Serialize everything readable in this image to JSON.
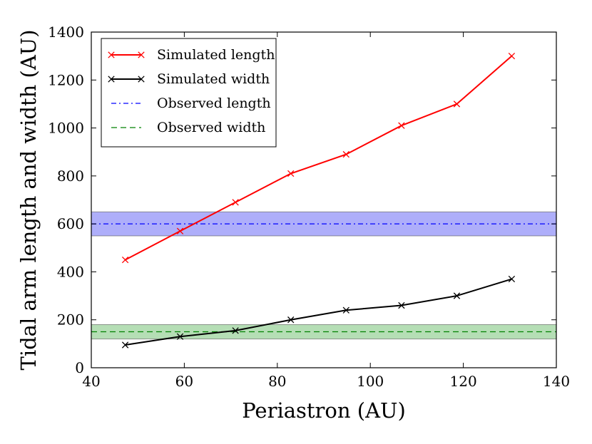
{
  "chart_data": {
    "type": "line",
    "xlabel": "Periastron (AU)",
    "ylabel": "Tidal arm length and width (AU)",
    "xlim": [
      40,
      140
    ],
    "ylim": [
      0,
      1400
    ],
    "xticks": [
      40,
      60,
      80,
      100,
      120,
      140
    ],
    "yticks": [
      0,
      200,
      400,
      600,
      800,
      1000,
      1200,
      1400
    ],
    "series": [
      {
        "name": "Simulated length",
        "color": "#ff0000",
        "marker": "x",
        "x": [
          47.3,
          59.1,
          71.0,
          82.9,
          94.8,
          106.7,
          118.6,
          130.4
        ],
        "y": [
          450,
          570,
          690,
          810,
          890,
          1010,
          1100,
          1300
        ]
      },
      {
        "name": "Simulated width",
        "color": "#000000",
        "marker": "x",
        "x": [
          47.3,
          59.1,
          71.0,
          82.9,
          94.8,
          106.7,
          118.6,
          130.4
        ],
        "y": [
          95,
          130,
          155,
          200,
          240,
          260,
          300,
          370
        ]
      }
    ],
    "observed": [
      {
        "name": "Observed length",
        "value": 600,
        "band": [
          550,
          650
        ],
        "color": "#0000ff",
        "band_color": "#6b6bf5",
        "linestyle": "dashdot"
      },
      {
        "name": "Observed width",
        "value": 150,
        "band": [
          120,
          180
        ],
        "color": "#008000",
        "band_color": "#78c278",
        "linestyle": "dashed"
      }
    ],
    "legend": {
      "position": "top-left",
      "entries": [
        "Simulated length",
        "Simulated width",
        "Observed length",
        "Observed width"
      ]
    }
  }
}
